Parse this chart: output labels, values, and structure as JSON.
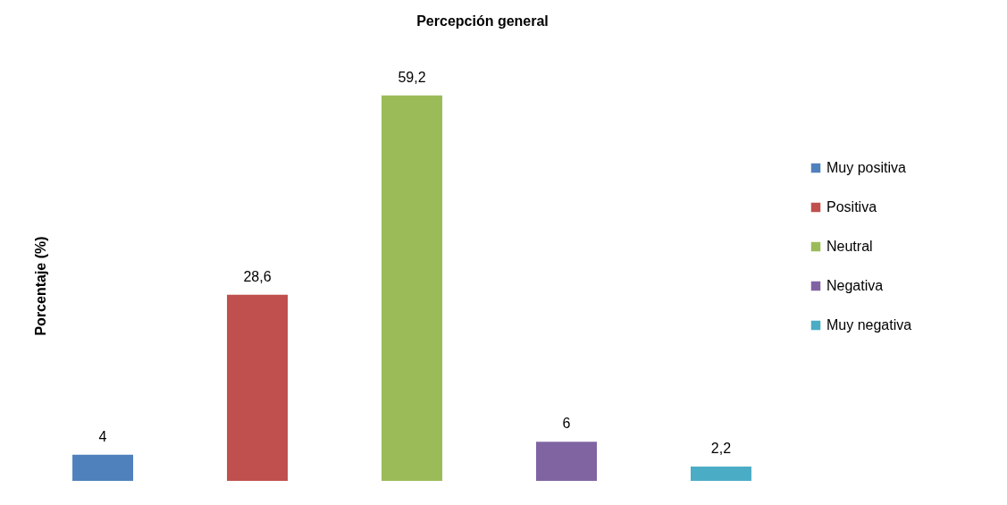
{
  "chart_data": {
    "type": "bar",
    "title": "Percepción general",
    "ylabel": "Porcentaje (%)",
    "categories": [
      null,
      null,
      null,
      null,
      null
    ],
    "stacked": true,
    "series": [
      {
        "name": "Muy positiva",
        "color": "#4f81bd",
        "values": [
          4,
          null,
          null,
          null,
          null
        ],
        "value_labels": [
          "4",
          null,
          null,
          null,
          null
        ]
      },
      {
        "name": "Positiva",
        "color": "#c0504d",
        "values": [
          null,
          28.6,
          null,
          null,
          null
        ],
        "value_labels": [
          null,
          "28,6",
          null,
          null,
          null
        ]
      },
      {
        "name": "Neutral",
        "color": "#9bbb59",
        "values": [
          null,
          null,
          59.2,
          null,
          null
        ],
        "value_labels": [
          null,
          null,
          "59,2",
          null,
          null
        ]
      },
      {
        "name": "Negativa",
        "color": "#8064a2",
        "values": [
          null,
          null,
          null,
          6,
          null
        ],
        "value_labels": [
          null,
          null,
          null,
          "6",
          null
        ]
      },
      {
        "name": "Muy negativa",
        "color": "#4bacc6",
        "values": [
          null,
          null,
          null,
          null,
          2.2
        ],
        "value_labels": [
          null,
          null,
          null,
          null,
          "2,2"
        ]
      }
    ],
    "legend": "right",
    "tick_labels": false
  }
}
